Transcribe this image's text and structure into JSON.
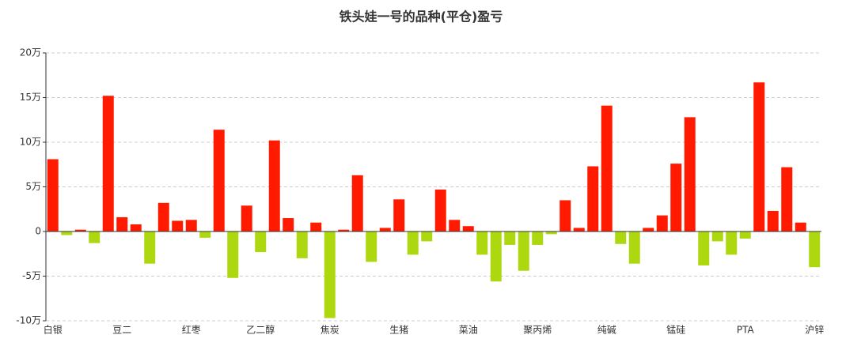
{
  "chart_data": {
    "type": "bar",
    "title": "铁头娃一号的品种(平仓)盈亏",
    "categories": [
      "白银",
      null,
      null,
      null,
      null,
      "豆二",
      null,
      null,
      null,
      null,
      "红枣",
      null,
      null,
      null,
      null,
      "乙二醇",
      null,
      null,
      null,
      null,
      "焦炭",
      null,
      null,
      null,
      null,
      "生猪",
      null,
      null,
      null,
      null,
      "菜油",
      null,
      null,
      null,
      null,
      "聚丙烯",
      null,
      null,
      null,
      null,
      "纯碱",
      null,
      null,
      null,
      null,
      "锰硅",
      null,
      null,
      null,
      null,
      "PTA",
      null,
      null,
      null,
      null,
      "沪锌"
    ],
    "values": [
      8.1,
      -0.4,
      0.2,
      -1.3,
      15.2,
      1.6,
      0.8,
      -3.6,
      3.2,
      1.2,
      1.3,
      -0.7,
      11.4,
      -5.2,
      2.9,
      -2.3,
      10.2,
      1.5,
      -3.0,
      1.0,
      -9.7,
      0.2,
      6.3,
      -3.4,
      0.4,
      3.6,
      -2.6,
      -1.1,
      4.7,
      1.3,
      0.6,
      -2.6,
      -5.6,
      -1.5,
      -4.4,
      -1.5,
      -0.3,
      3.5,
      0.4,
      7.3,
      14.1,
      -1.4,
      -3.6,
      0.4,
      1.8,
      7.6,
      12.8,
      -3.8,
      -1.1,
      -2.6,
      -0.8,
      16.7,
      2.3,
      7.2,
      1.0,
      -4.0
    ],
    "positive_color": "#ff1a00",
    "negative_color": "#add80f",
    "ylim": [
      -10,
      20
    ],
    "yticks": [
      {
        "value": -10,
        "label": "-10万"
      },
      {
        "value": -5,
        "label": "-5万"
      },
      {
        "value": 0,
        "label": "0"
      },
      {
        "value": 5,
        "label": "5万"
      },
      {
        "value": 10,
        "label": "10万"
      },
      {
        "value": 15,
        "label": "15万"
      },
      {
        "value": 20,
        "label": "20万"
      }
    ],
    "grid": true
  }
}
